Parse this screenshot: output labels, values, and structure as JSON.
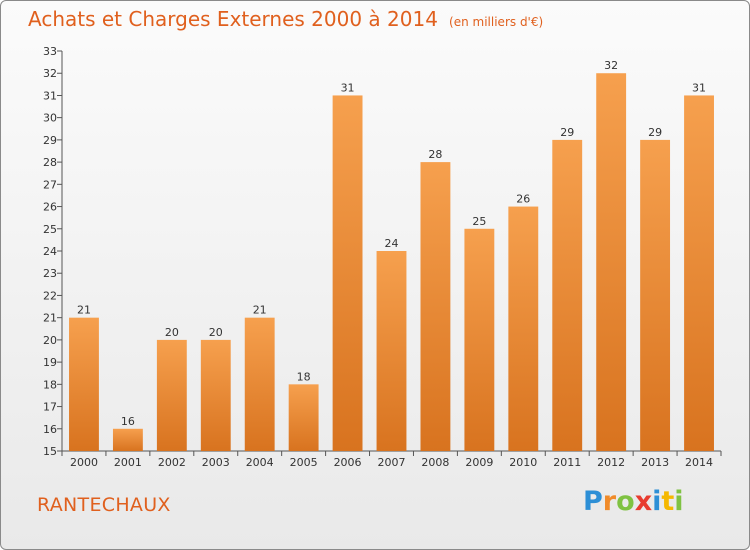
{
  "header": {
    "title": "Achats et Charges Externes 2000 à 2014",
    "subtitle": "(en milliers d'€)"
  },
  "footer": {
    "location": "RANTECHAUX",
    "brand": "Proxiti",
    "brand_letters": [
      "P",
      "r",
      "o",
      "x",
      "i",
      "t",
      "i"
    ],
    "brand_colors": [
      "#2d8fd6",
      "#f08b2a",
      "#7fc242",
      "#e83c2f",
      "#2d8fd6",
      "#f5b800",
      "#7fc242"
    ]
  },
  "colors": {
    "bar_light": "#f6a04e",
    "bar_dark": "#d8731f",
    "title": "#e0601e",
    "axis": "#555555"
  },
  "chart_data": {
    "type": "bar",
    "title": "Achats et Charges Externes 2000 à 2014",
    "subtitle": "(en milliers d'€)",
    "xlabel": "",
    "ylabel": "",
    "categories": [
      "2000",
      "2001",
      "2002",
      "2003",
      "2004",
      "2005",
      "2006",
      "2007",
      "2008",
      "2009",
      "2010",
      "2011",
      "2012",
      "2013",
      "2014"
    ],
    "values": [
      21,
      16,
      20,
      20,
      21,
      18,
      31,
      24,
      28,
      25,
      26,
      29,
      32,
      29,
      31
    ],
    "ylim": [
      15,
      33
    ],
    "yticks": [
      15,
      16,
      17,
      18,
      19,
      20,
      21,
      22,
      23,
      24,
      25,
      26,
      27,
      28,
      29,
      30,
      31,
      32,
      33
    ],
    "grid": false,
    "legend": "none"
  }
}
